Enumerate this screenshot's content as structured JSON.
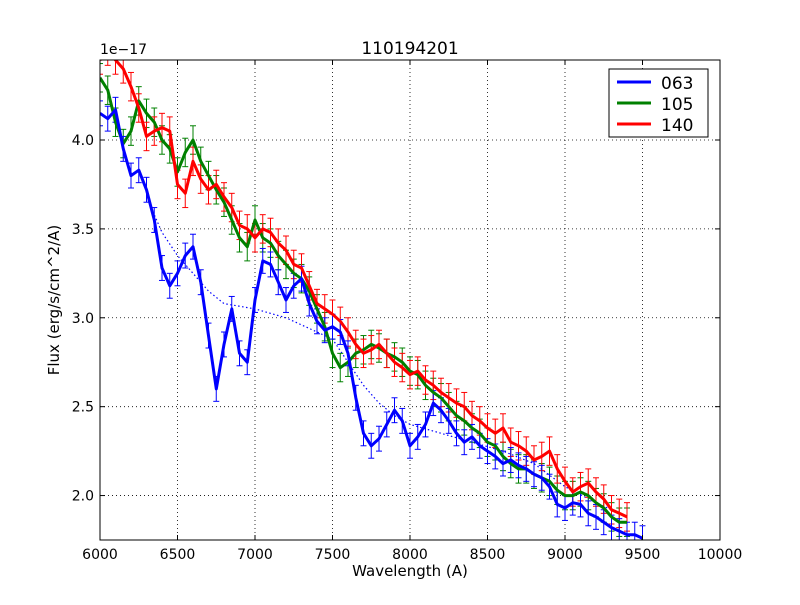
{
  "chart_data": {
    "type": "line",
    "title": "110194201",
    "xlabel": "Wavelength (A)",
    "ylabel": "Flux (erg/s/cm^2/A)",
    "offset_text": "1e−17",
    "xlim": [
      6000,
      10000
    ],
    "ylim": [
      1.75,
      4.45
    ],
    "xticks": [
      6000,
      6500,
      7000,
      7500,
      8000,
      8500,
      9000,
      9500,
      10000
    ],
    "xtick_labels": [
      "6000",
      "6500",
      "7000",
      "7500",
      "8000",
      "8500",
      "9000",
      "9500",
      "10000"
    ],
    "yticks": [
      2.0,
      2.5,
      3.0,
      3.5,
      4.0
    ],
    "ytick_labels": [
      "2.0",
      "2.5",
      "3.0",
      "3.5",
      "4.0"
    ],
    "grid": true,
    "legend_position": "top-right",
    "series": [
      {
        "name": "063",
        "color": "#0000ff",
        "x": [
          6000,
          6050,
          6100,
          6150,
          6200,
          6250,
          6300,
          6350,
          6400,
          6450,
          6500,
          6550,
          6600,
          6650,
          6700,
          6750,
          6800,
          6850,
          6900,
          6950,
          7000,
          7050,
          7100,
          7150,
          7200,
          7250,
          7300,
          7350,
          7400,
          7450,
          7500,
          7550,
          7600,
          7650,
          7700,
          7750,
          7800,
          7850,
          7900,
          7950,
          8000,
          8050,
          8100,
          8150,
          8200,
          8250,
          8300,
          8350,
          8400,
          8450,
          8500,
          8550,
          8600,
          8650,
          8700,
          8750,
          8800,
          8850,
          8900,
          8950,
          9000,
          9050,
          9100,
          9150,
          9200,
          9250,
          9300,
          9350,
          9400,
          9450,
          9500
        ],
        "y": [
          4.15,
          4.12,
          4.17,
          3.95,
          3.8,
          3.83,
          3.72,
          3.55,
          3.28,
          3.18,
          3.25,
          3.35,
          3.4,
          3.2,
          2.9,
          2.6,
          2.85,
          3.05,
          2.8,
          2.75,
          3.1,
          3.32,
          3.3,
          3.2,
          3.1,
          3.18,
          3.22,
          3.08,
          2.98,
          2.93,
          2.95,
          2.92,
          2.8,
          2.55,
          2.35,
          2.28,
          2.32,
          2.4,
          2.48,
          2.42,
          2.28,
          2.33,
          2.4,
          2.52,
          2.48,
          2.42,
          2.35,
          2.3,
          2.33,
          2.28,
          2.25,
          2.22,
          2.18,
          2.2,
          2.17,
          2.15,
          2.12,
          2.1,
          2.05,
          1.95,
          1.93,
          1.96,
          1.95,
          1.9,
          1.88,
          1.85,
          1.82,
          1.8,
          1.78,
          1.78,
          1.76
        ],
        "err": 0.07
      },
      {
        "name": "105",
        "color": "#008000",
        "x": [
          6000,
          6050,
          6100,
          6150,
          6200,
          6250,
          6300,
          6350,
          6400,
          6450,
          6500,
          6550,
          6600,
          6650,
          6700,
          6750,
          6800,
          6850,
          6900,
          6950,
          7000,
          7050,
          7100,
          7150,
          7200,
          7250,
          7300,
          7350,
          7400,
          7450,
          7500,
          7550,
          7600,
          7650,
          7700,
          7750,
          7800,
          7850,
          7900,
          7950,
          8000,
          8050,
          8100,
          8150,
          8200,
          8250,
          8300,
          8350,
          8400,
          8450,
          8500,
          8550,
          8600,
          8650,
          8700,
          8750,
          8800,
          8850,
          8900,
          8950,
          9000,
          9050,
          9100,
          9150,
          9200,
          9250,
          9300,
          9350,
          9400
        ],
        "y": [
          4.35,
          4.28,
          4.1,
          3.98,
          4.05,
          4.22,
          4.15,
          4.1,
          4.0,
          3.95,
          3.82,
          3.93,
          4.0,
          3.88,
          3.8,
          3.72,
          3.65,
          3.55,
          3.45,
          3.4,
          3.55,
          3.45,
          3.42,
          3.35,
          3.3,
          3.25,
          3.22,
          3.15,
          3.05,
          2.95,
          2.8,
          2.72,
          2.75,
          2.8,
          2.82,
          2.85,
          2.83,
          2.8,
          2.78,
          2.75,
          2.7,
          2.68,
          2.62,
          2.58,
          2.55,
          2.5,
          2.45,
          2.42,
          2.38,
          2.35,
          2.3,
          2.28,
          2.22,
          2.18,
          2.15,
          2.15,
          2.12,
          2.1,
          2.08,
          2.03,
          2.0,
          2.0,
          2.02,
          2.0,
          1.96,
          1.93,
          1.88,
          1.85,
          1.85
        ],
        "err": 0.08
      },
      {
        "name": "140",
        "color": "#ff0000",
        "x": [
          6000,
          6050,
          6100,
          6150,
          6200,
          6250,
          6300,
          6350,
          6400,
          6450,
          6500,
          6550,
          6600,
          6650,
          6700,
          6750,
          6800,
          6850,
          6900,
          6950,
          7000,
          7050,
          7100,
          7150,
          7200,
          7250,
          7300,
          7350,
          7400,
          7450,
          7500,
          7550,
          7600,
          7650,
          7700,
          7750,
          7800,
          7850,
          7900,
          7950,
          8000,
          8050,
          8100,
          8150,
          8200,
          8250,
          8300,
          8350,
          8400,
          8450,
          8500,
          8550,
          8600,
          8650,
          8700,
          8750,
          8800,
          8850,
          8900,
          8950,
          9000,
          9050,
          9100,
          9150,
          9200,
          9250,
          9300,
          9350,
          9400
        ],
        "y": [
          4.45,
          4.5,
          4.45,
          4.4,
          4.3,
          4.18,
          4.02,
          4.05,
          4.07,
          4.05,
          3.75,
          3.7,
          3.88,
          3.78,
          3.72,
          3.75,
          3.68,
          3.62,
          3.52,
          3.5,
          3.45,
          3.5,
          3.48,
          3.42,
          3.38,
          3.3,
          3.28,
          3.18,
          3.08,
          3.05,
          3.02,
          2.98,
          2.92,
          2.85,
          2.8,
          2.82,
          2.85,
          2.8,
          2.75,
          2.72,
          2.68,
          2.7,
          2.65,
          2.62,
          2.58,
          2.55,
          2.52,
          2.5,
          2.45,
          2.42,
          2.38,
          2.35,
          2.38,
          2.3,
          2.28,
          2.25,
          2.2,
          2.22,
          2.25,
          2.15,
          2.08,
          2.02,
          2.05,
          2.07,
          2.02,
          1.98,
          1.92,
          1.9,
          1.88
        ],
        "err": 0.08
      }
    ],
    "fit_line": {
      "color": "#0000ff",
      "style": "dotted",
      "x": [
        6300,
        6400,
        6500,
        6600,
        6700,
        6800,
        7000,
        7200,
        7400,
        7500,
        7600,
        7700,
        7800,
        7900,
        8000,
        8200,
        8400,
        8600,
        8800,
        9000,
        9200,
        9400
      ],
      "y": [
        3.68,
        3.48,
        3.35,
        3.25,
        3.15,
        3.08,
        3.05,
        3.0,
        2.92,
        2.88,
        2.75,
        2.62,
        2.52,
        2.45,
        2.4,
        2.35,
        2.3,
        2.25,
        2.18,
        2.05,
        1.96,
        1.88
      ]
    }
  }
}
